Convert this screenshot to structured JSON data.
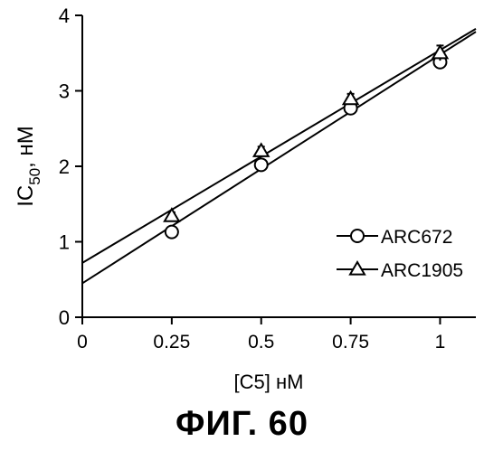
{
  "figure_caption": "ФИГ. 60",
  "chart_data": {
    "type": "scatter",
    "xlabel": "[C5] нМ",
    "ylabel_main": "IC",
    "ylabel_sub": "50",
    "ylabel_tail": ", нМ",
    "xlim": [
      0,
      1.1
    ],
    "ylim": [
      0,
      4
    ],
    "x_ticks": [
      0,
      0.25,
      0.5,
      0.75,
      1
    ],
    "x_tick_labels": [
      "0",
      "0.25",
      "0.5",
      "0.75",
      "1"
    ],
    "y_ticks": [
      0,
      1,
      2,
      3,
      4
    ],
    "y_tick_labels": [
      "0",
      "1",
      "2",
      "3",
      "4"
    ],
    "grid": false,
    "legend_position": "right",
    "series": [
      {
        "name": "ARC672",
        "marker": "circle",
        "x": [
          0.25,
          0.5,
          0.75,
          1.0
        ],
        "y": [
          1.13,
          2.02,
          2.77,
          3.38
        ],
        "err": [
          0.05,
          0.05,
          0.05,
          0.05
        ],
        "fit": {
          "intercept": 0.45,
          "slope": 3.03
        }
      },
      {
        "name": "ARC1905",
        "marker": "triangle",
        "x": [
          0.25,
          0.5,
          0.75,
          1.0
        ],
        "y": [
          1.34,
          2.2,
          2.89,
          3.5
        ],
        "err": [
          0.05,
          0.06,
          0.07,
          0.1
        ],
        "fit": {
          "intercept": 0.72,
          "slope": 2.82
        }
      }
    ]
  }
}
